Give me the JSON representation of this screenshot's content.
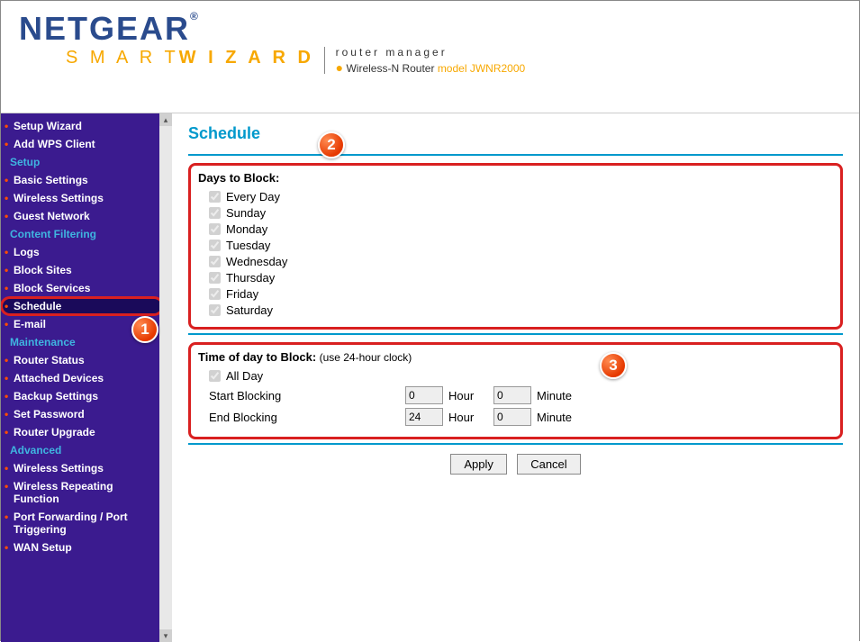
{
  "header": {
    "brand": "NETGEAR",
    "wizard_a": "S M A R T",
    "wizard_b": "W I Z A R D",
    "product_line": "router manager",
    "sub_prefix": "Wireless-N Router ",
    "sub_model_label": "model ",
    "sub_model": "JWNR2000"
  },
  "sidebar": {
    "items": [
      {
        "label": "Setup Wizard",
        "type": "item"
      },
      {
        "label": "Add WPS Client",
        "type": "item"
      },
      {
        "label": "Setup",
        "type": "header"
      },
      {
        "label": "Basic Settings",
        "type": "item"
      },
      {
        "label": "Wireless Settings",
        "type": "item"
      },
      {
        "label": "Guest Network",
        "type": "item"
      },
      {
        "label": "Content Filtering",
        "type": "header"
      },
      {
        "label": "Logs",
        "type": "item"
      },
      {
        "label": "Block Sites",
        "type": "item"
      },
      {
        "label": "Block Services",
        "type": "item"
      },
      {
        "label": "Schedule",
        "type": "item",
        "selected": true
      },
      {
        "label": "E-mail",
        "type": "item"
      },
      {
        "label": "Maintenance",
        "type": "header"
      },
      {
        "label": "Router Status",
        "type": "item"
      },
      {
        "label": "Attached Devices",
        "type": "item"
      },
      {
        "label": "Backup Settings",
        "type": "item"
      },
      {
        "label": "Set Password",
        "type": "item"
      },
      {
        "label": "Router Upgrade",
        "type": "item"
      },
      {
        "label": "Advanced",
        "type": "header"
      },
      {
        "label": "Wireless Settings",
        "type": "item"
      },
      {
        "label": "Wireless Repeating Function",
        "type": "item"
      },
      {
        "label": "Port Forwarding / Port Triggering",
        "type": "item"
      },
      {
        "label": "WAN Setup",
        "type": "item"
      }
    ]
  },
  "page": {
    "title": "Schedule",
    "days_label": "Days to Block:",
    "days": [
      "Every Day",
      "Sunday",
      "Monday",
      "Tuesday",
      "Wednesday",
      "Thursday",
      "Friday",
      "Saturday"
    ],
    "time_label": "Time of day to Block:",
    "time_hint": " (use 24-hour clock)",
    "all_day": "All Day",
    "start_label": "Start Blocking",
    "end_label": "End Blocking",
    "hour_unit": "Hour",
    "minute_unit": "Minute",
    "start_hour": "0",
    "start_min": "0",
    "end_hour": "24",
    "end_min": "0",
    "apply": "Apply",
    "cancel": "Cancel"
  },
  "callouts": {
    "c1": "1",
    "c2": "2",
    "c3": "3"
  },
  "colors": {
    "sidebar_bg": "#3b1b8f",
    "accent": "#0099cc",
    "highlight_border": "#d92020",
    "bullet": "#ff4d00",
    "section_header": "#3fb5e0",
    "orange": "#f7a800"
  }
}
